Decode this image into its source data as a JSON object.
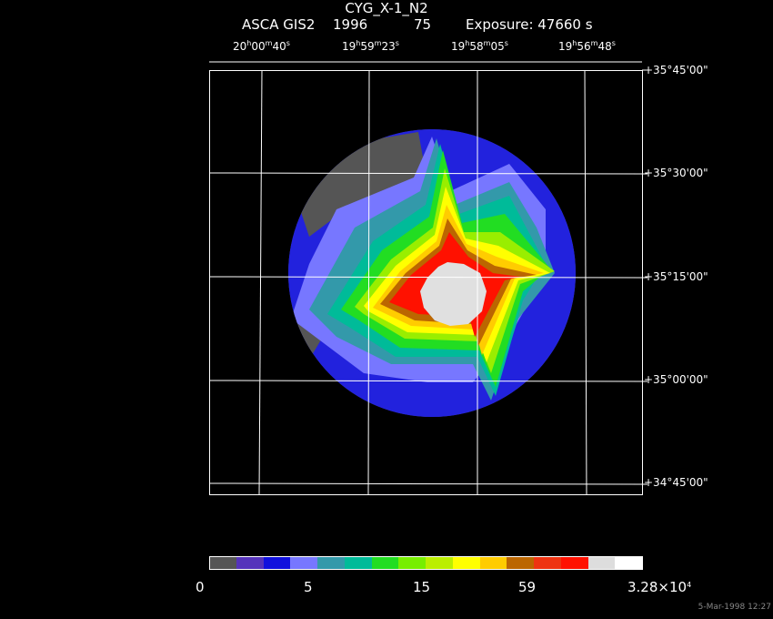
{
  "header": {
    "title": "CYG_X-1_N2",
    "instrument": "ASCA GIS2",
    "year": "1996",
    "number": "75",
    "exposure": "Exposure: 47660 s"
  },
  "ra_ticks": [
    {
      "h": "20",
      "m": "00",
      "s": "40"
    },
    {
      "h": "19",
      "m": "59",
      "s": "23"
    },
    {
      "h": "19",
      "m": "58",
      "s": "05"
    },
    {
      "h": "19",
      "m": "56",
      "s": "48"
    }
  ],
  "dec_ticks": [
    "+35°45'00\"",
    "+35°30'00\"",
    "+35°15'00\"",
    "+35°00'00\"",
    "+34°45'00\""
  ],
  "colorbar": {
    "colors": [
      "#555555",
      "#5533bb",
      "#1111dd",
      "#7777ff",
      "#3399aa",
      "#00bb99",
      "#22dd22",
      "#77ee00",
      "#bbee00",
      "#ffff00",
      "#ffcc00",
      "#bb6600",
      "#ee3311",
      "#ff1100",
      "#dddddd",
      "#ffffff"
    ],
    "labels": [
      "0",
      "5",
      "15",
      "59"
    ],
    "max_label": "3.28×10",
    "max_exp": "4"
  },
  "image_colors": {
    "gray": "#555555",
    "purple": "#5533bb",
    "blue": "#2222dd",
    "lightblue": "#7777ff",
    "teal": "#3399aa",
    "cyan": "#00bb99",
    "green": "#22dd22",
    "lime": "#99ee00",
    "yellow": "#ffff00",
    "orange": "#ffcc00",
    "brown": "#bb6600",
    "red": "#ff1100",
    "core": "#e0e0e0"
  },
  "footer": {
    "timestamp": "5-Mar-1998 12:27"
  }
}
